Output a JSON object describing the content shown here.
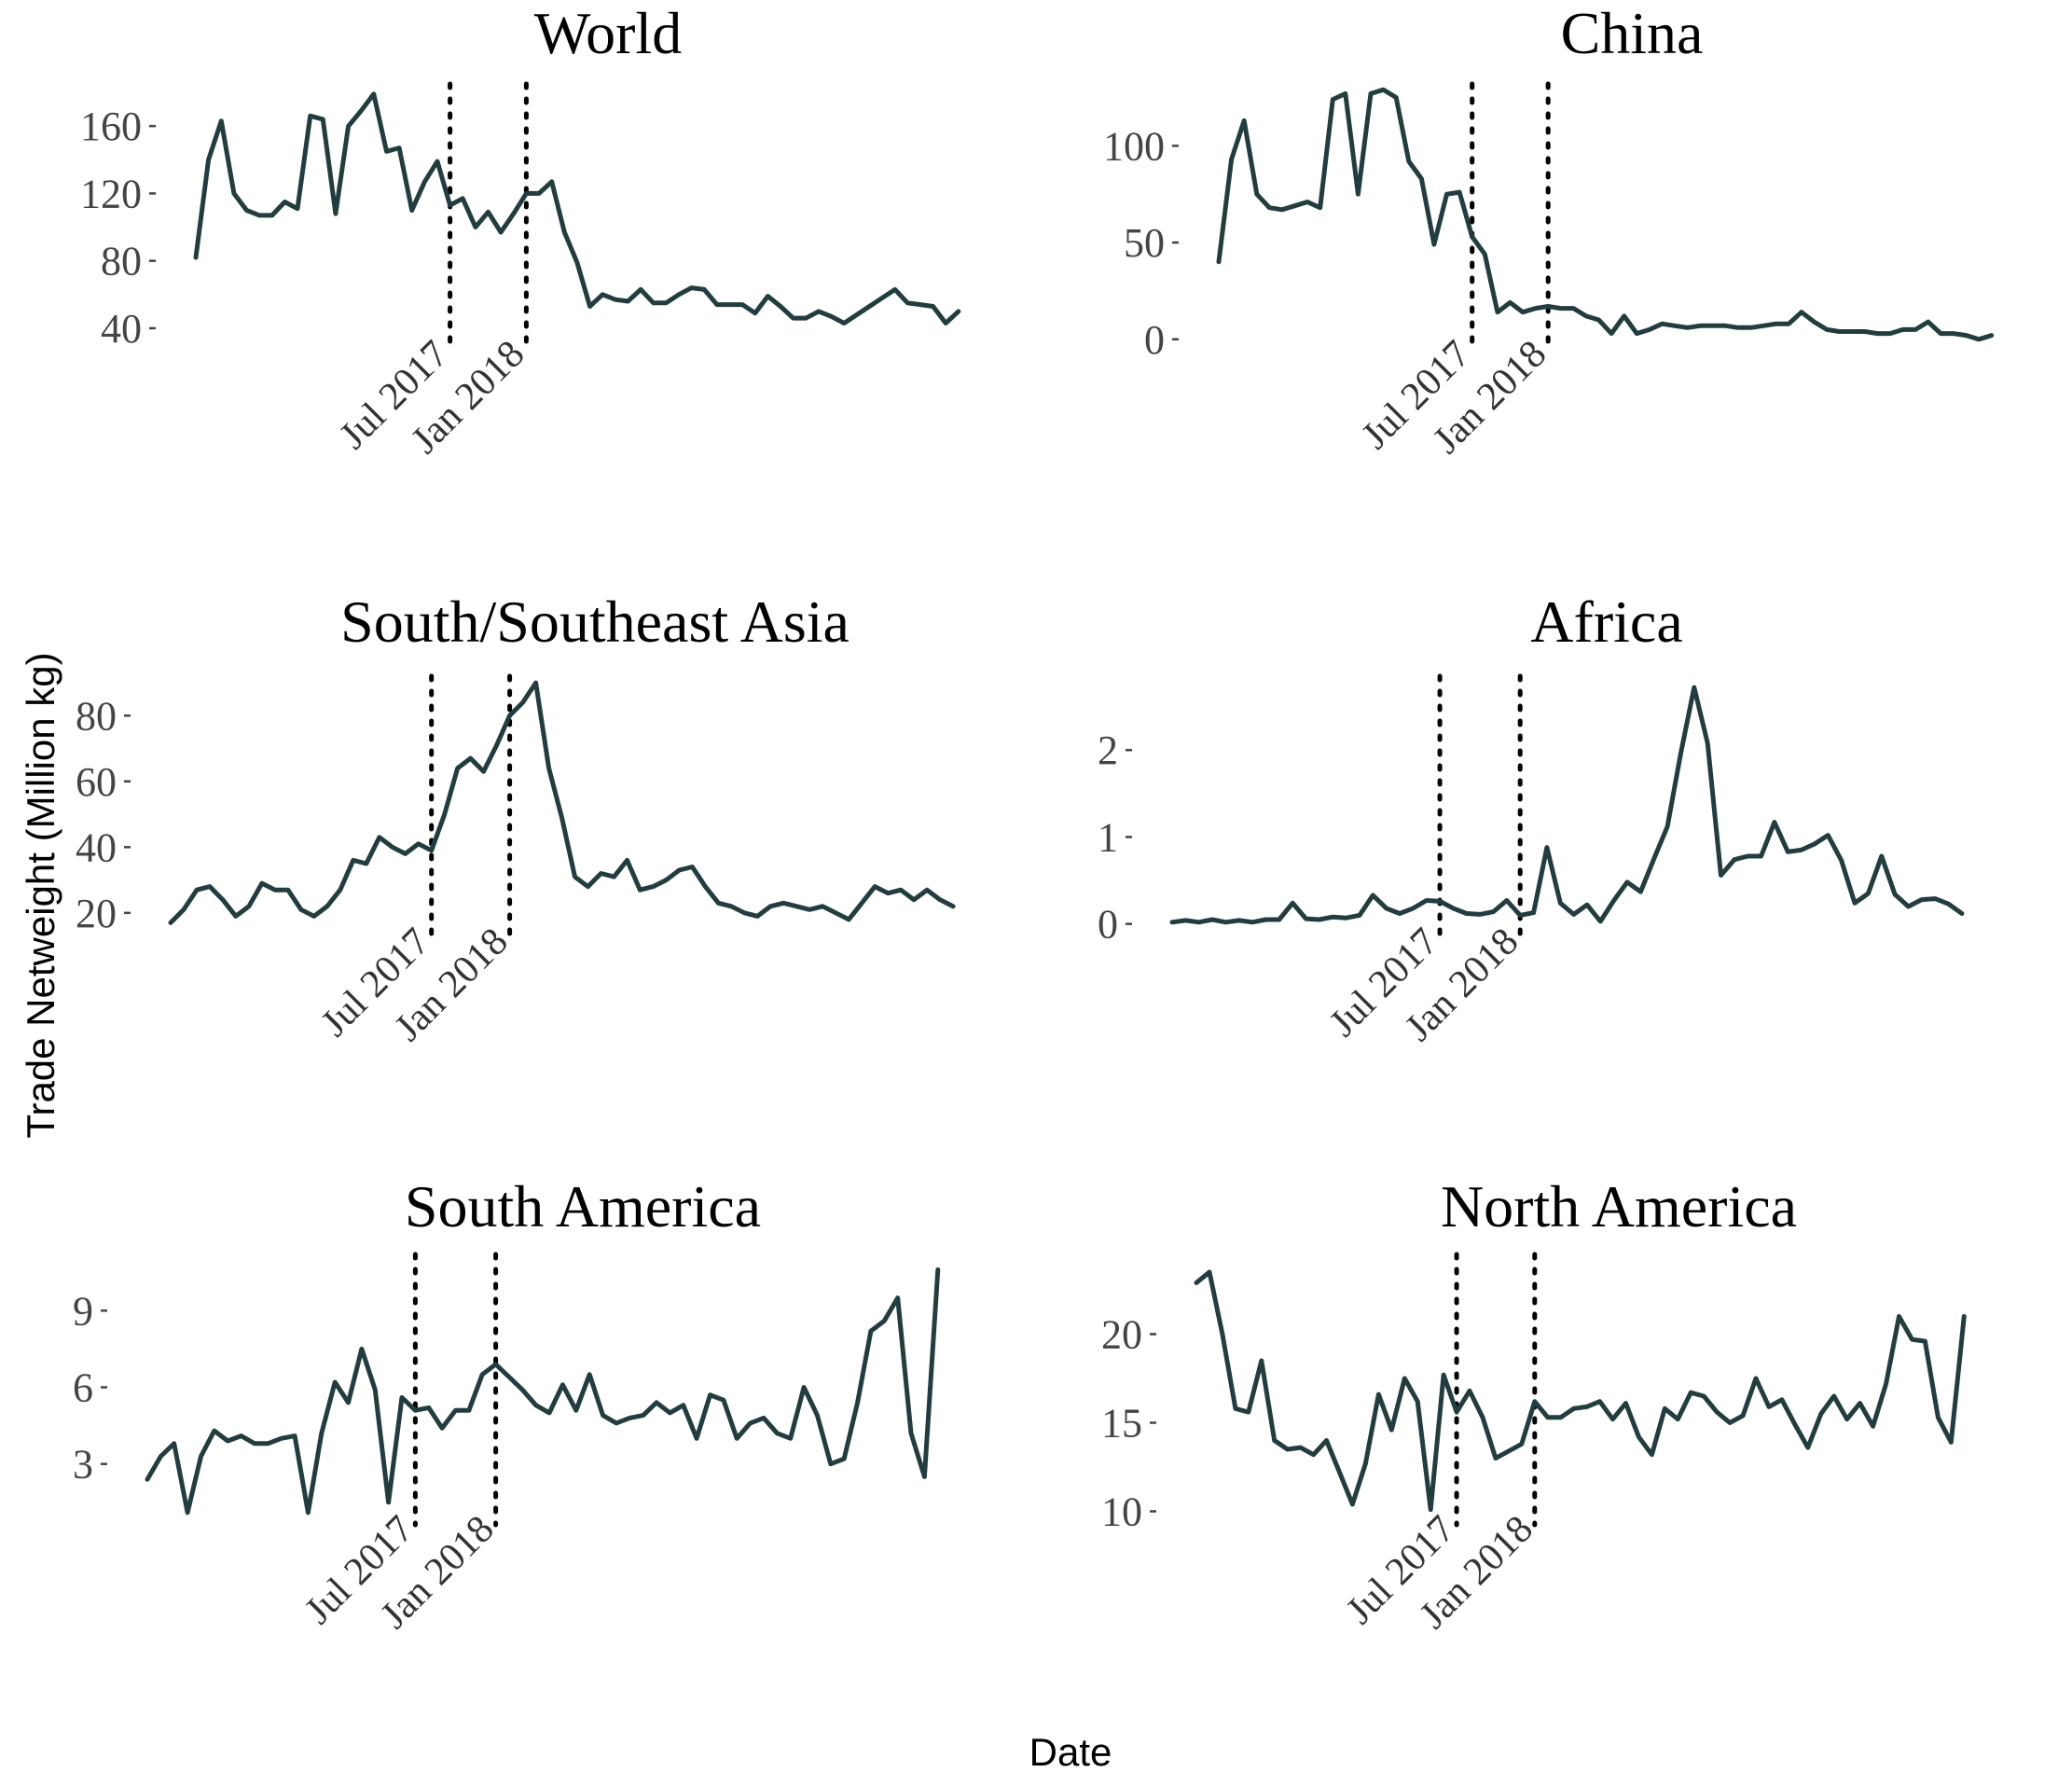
{
  "chart_data": {
    "type": "line",
    "xlabel": "Date",
    "ylabel": "Trade Netweight (Million kg)",
    "grid": false,
    "legend": "none",
    "colors": {
      "line": "#233d3f",
      "reference": "#000000"
    },
    "x": [
      "2015-11",
      "2015-12",
      "2016-01",
      "2016-02",
      "2016-03",
      "2016-04",
      "2016-05",
      "2016-06",
      "2016-07",
      "2016-08",
      "2016-09",
      "2016-10",
      "2016-11",
      "2016-12",
      "2017-01",
      "2017-02",
      "2017-03",
      "2017-04",
      "2017-05",
      "2017-06",
      "2017-07",
      "2017-08",
      "2017-09",
      "2017-10",
      "2017-11",
      "2017-12",
      "2018-01",
      "2018-02",
      "2018-03",
      "2018-04",
      "2018-05",
      "2018-06",
      "2018-07",
      "2018-08",
      "2018-09",
      "2018-10",
      "2018-11",
      "2018-12",
      "2019-01",
      "2019-02",
      "2019-03",
      "2019-04",
      "2019-05",
      "2019-06",
      "2019-07",
      "2019-08",
      "2019-09",
      "2019-10",
      "2019-11",
      "2019-12",
      "2020-01",
      "2020-02",
      "2020-03",
      "2020-04",
      "2020-05",
      "2020-06",
      "2020-07",
      "2020-08",
      "2020-09",
      "2020-10",
      "2020-11",
      "2020-12",
      "2021-01",
      "2021-02",
      "2021-03",
      "2021-04"
    ],
    "reference_lines": [
      {
        "date": "2017-07",
        "label": "Jul 2017"
      },
      {
        "date": "2018-01",
        "label": "Jan 2018"
      }
    ],
    "panels": [
      {
        "title": "World",
        "ylim": [
          30,
          185
        ],
        "yticks": [
          40,
          80,
          120,
          160
        ],
        "values": [
          82,
          140,
          163,
          120,
          110,
          107,
          107,
          115,
          111,
          166,
          164,
          108,
          160,
          169,
          179,
          145,
          147,
          110,
          127,
          139,
          113,
          117,
          100,
          109,
          97,
          108,
          120,
          120,
          127,
          97,
          79,
          53,
          60,
          57,
          56,
          63,
          55,
          55,
          60,
          64,
          63,
          54,
          54,
          54,
          49,
          59,
          53,
          46,
          46,
          50,
          47,
          43,
          48,
          53,
          58,
          63,
          55,
          54,
          53,
          43,
          50,
          null,
          null,
          null,
          null,
          null
        ]
      },
      {
        "title": "China",
        "ylim": [
          -3,
          132
        ],
        "yticks": [
          0,
          50,
          100
        ],
        "values": [
          40,
          93,
          113,
          75,
          68,
          67,
          69,
          71,
          68,
          124,
          127,
          75,
          127,
          129,
          125,
          92,
          83,
          49,
          75,
          76,
          53,
          44,
          14,
          19,
          14,
          16,
          17,
          16,
          16,
          12,
          10,
          3,
          12,
          3,
          5,
          8,
          7,
          6,
          7,
          7,
          7,
          6,
          6,
          7,
          8,
          8,
          14,
          9,
          5,
          4,
          4,
          4,
          3,
          3,
          5,
          5,
          9,
          3,
          3,
          2,
          0,
          2,
          null,
          null,
          null,
          null
        ]
      },
      {
        "title": "South/Southeast Asia",
        "ylim": [
          14,
          92
        ],
        "yticks": [
          20,
          40,
          60,
          80
        ],
        "values": [
          17,
          21,
          27,
          28,
          24,
          19,
          22,
          29,
          27,
          27,
          21,
          19,
          22,
          27,
          36,
          35,
          43,
          40,
          38,
          41,
          39,
          50,
          64,
          67,
          63,
          71,
          80,
          84,
          90,
          64,
          49,
          31,
          28,
          32,
          31,
          36,
          27,
          28,
          30,
          33,
          34,
          28,
          23,
          22,
          20,
          19,
          22,
          23,
          22,
          21,
          22,
          20,
          18,
          23,
          28,
          26,
          27,
          24,
          27,
          24,
          22,
          null,
          null,
          null,
          null,
          null
        ]
      },
      {
        "title": "Africa",
        "ylim": [
          -0.1,
          2.85
        ],
        "yticks": [
          0,
          1,
          2
        ],
        "values": [
          0.02,
          0.04,
          0.02,
          0.05,
          0.02,
          0.04,
          0.02,
          0.05,
          0.05,
          0.24,
          0.06,
          0.05,
          0.08,
          0.07,
          0.1,
          0.33,
          0.18,
          0.12,
          0.18,
          0.27,
          0.26,
          0.18,
          0.12,
          0.11,
          0.14,
          0.27,
          0.1,
          0.13,
          0.88,
          0.24,
          0.11,
          0.22,
          0.03,
          0.27,
          0.48,
          0.37,
          0.75,
          1.12,
          1.96,
          2.72,
          2.08,
          0.56,
          0.74,
          0.78,
          0.78,
          1.17,
          0.83,
          0.85,
          0.92,
          1.02,
          0.73,
          0.24,
          0.35,
          0.78,
          0.34,
          0.2,
          0.28,
          0.29,
          0.23,
          0.12,
          null,
          null,
          null,
          null,
          null,
          null
        ]
      },
      {
        "title": "South America",
        "ylim": [
          0.8,
          11.2
        ],
        "yticks": [
          3,
          6,
          9
        ],
        "values": [
          2.4,
          3.3,
          3.8,
          1.1,
          3.3,
          4.3,
          3.9,
          4.1,
          3.8,
          3.8,
          4.0,
          4.1,
          1.1,
          4.2,
          6.2,
          5.4,
          7.5,
          5.9,
          1.5,
          5.6,
          5.1,
          5.2,
          4.4,
          5.1,
          5.1,
          6.5,
          6.9,
          6.4,
          5.9,
          5.3,
          5.0,
          6.1,
          5.1,
          6.5,
          4.9,
          4.6,
          4.8,
          4.9,
          5.4,
          5.0,
          5.3,
          4.0,
          5.7,
          5.5,
          4.0,
          4.6,
          4.8,
          4.2,
          4.0,
          6.0,
          4.9,
          3.0,
          3.2,
          5.4,
          8.2,
          8.6,
          9.5,
          4.2,
          2.5,
          10.6,
          null,
          null,
          null,
          null,
          null,
          null
        ]
      },
      {
        "title": "North America",
        "ylim": [
          9.5,
          24.5
        ],
        "yticks": [
          10,
          15,
          20
        ],
        "values": [
          22.9,
          23.5,
          20.0,
          15.8,
          15.6,
          18.5,
          14.0,
          13.5,
          13.6,
          13.2,
          14.0,
          12.2,
          10.4,
          12.7,
          16.6,
          14.6,
          17.5,
          16.2,
          10.1,
          17.7,
          15.6,
          16.8,
          15.3,
          13.0,
          13.4,
          13.8,
          16.2,
          15.3,
          15.3,
          15.8,
          15.9,
          16.2,
          15.2,
          16.1,
          14.2,
          13.2,
          15.8,
          15.2,
          16.7,
          16.5,
          15.6,
          15.0,
          15.4,
          17.5,
          15.9,
          16.3,
          14.9,
          13.6,
          15.5,
          16.5,
          15.2,
          16.1,
          14.8,
          17.2,
          21.0,
          19.7,
          19.6,
          15.3,
          13.9,
          21.0,
          null,
          null,
          null,
          null,
          null,
          null
        ]
      }
    ]
  }
}
